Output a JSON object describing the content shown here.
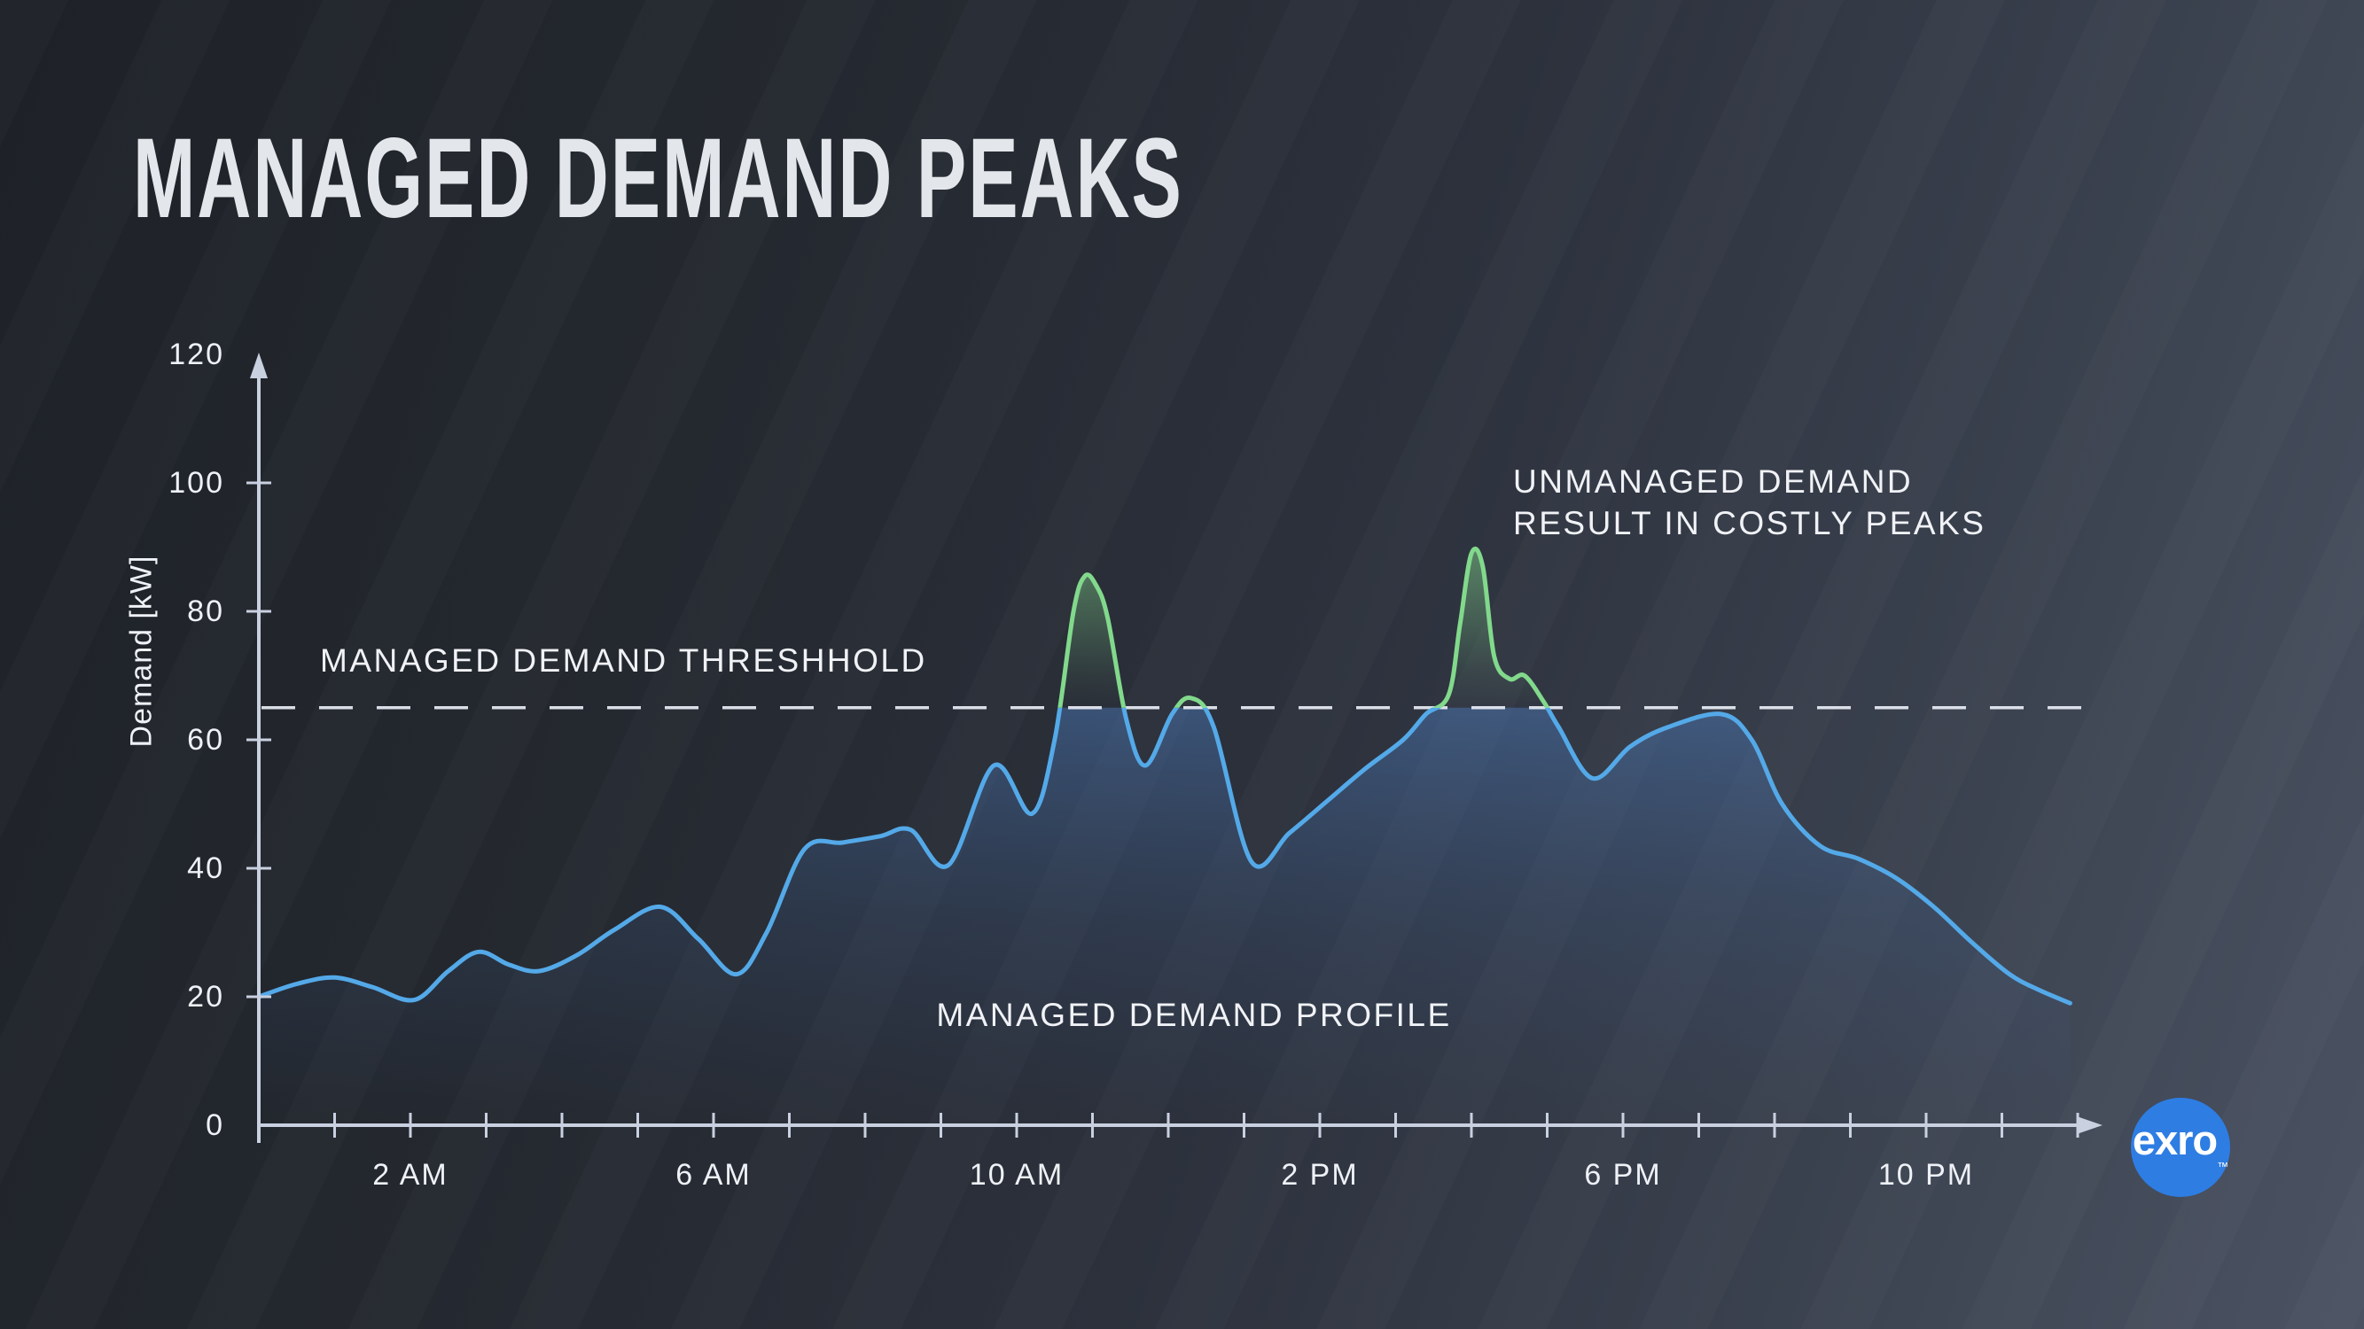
{
  "page": {
    "title": "MANAGED DEMAND PEAKS"
  },
  "labels": {
    "threshold": "MANAGED DEMAND THRESHHOLD",
    "unmanaged_line1": "UNMANAGED DEMAND",
    "unmanaged_line2": "RESULT IN COSTLY PEAKS",
    "profile": "MANAGED DEMAND PROFILE",
    "y_axis_title": "Demand [kW]",
    "logo_text": "exro",
    "logo_tm": "™"
  },
  "colors": {
    "managed_line_blue": "#54a9e8",
    "unmanaged_line_green": "#82d98c",
    "threshold_dash": "#e9edf6",
    "axis": "#c9d0e0",
    "text_light": "#eef1f6",
    "logo_circle_blue": "#2e7de3",
    "background_dark": "#1e2228",
    "background_light": "#4b5363"
  },
  "chart_data": {
    "type": "area",
    "title": "MANAGED DEMAND PEAKS",
    "ylabel": "Demand [kW]",
    "xlabel": "",
    "ylim": [
      0,
      120
    ],
    "xlim_hours": [
      0,
      24
    ],
    "grid": false,
    "legend_position": "none",
    "threshold_kw": 65,
    "y_ticks_labeled": [
      0,
      20,
      40,
      60,
      80,
      100,
      120
    ],
    "y_ticks_marked": [
      20,
      40,
      60,
      80,
      100
    ],
    "x_tick_hours_marked_every": 1,
    "x_ticks_labeled": [
      {
        "hour": 2,
        "label": "2 AM"
      },
      {
        "hour": 6,
        "label": "6 AM"
      },
      {
        "hour": 10,
        "label": "10 AM"
      },
      {
        "hour": 14,
        "label": "2 PM"
      },
      {
        "hour": 18,
        "label": "6 PM"
      },
      {
        "hour": 22,
        "label": "10 PM"
      }
    ],
    "series": [
      {
        "name": "demand_kw",
        "note": "single demand curve; drawn green above threshold (unmanaged peaks), blue below; blue area fill is clipped flat at the threshold",
        "points": [
          [
            0,
            20
          ],
          [
            0.5,
            22
          ],
          [
            1,
            23
          ],
          [
            1.5,
            21.5
          ],
          [
            2.05,
            19.5
          ],
          [
            2.5,
            24
          ],
          [
            2.9,
            27
          ],
          [
            3.3,
            25
          ],
          [
            3.7,
            24
          ],
          [
            4.2,
            26.5
          ],
          [
            4.7,
            30.5
          ],
          [
            5.3,
            34
          ],
          [
            5.8,
            29
          ],
          [
            6.3,
            23.5
          ],
          [
            6.7,
            30
          ],
          [
            7.2,
            43
          ],
          [
            7.7,
            44
          ],
          [
            8.2,
            45
          ],
          [
            8.6,
            46
          ],
          [
            9.1,
            40.5
          ],
          [
            9.7,
            56
          ],
          [
            10.2,
            48.5
          ],
          [
            10.5,
            60
          ],
          [
            10.75,
            80
          ],
          [
            10.9,
            85.5
          ],
          [
            11.05,
            84
          ],
          [
            11.2,
            79
          ],
          [
            11.45,
            63
          ],
          [
            11.7,
            56
          ],
          [
            12.05,
            64
          ],
          [
            12.3,
            66.5
          ],
          [
            12.6,
            62
          ],
          [
            13.1,
            41
          ],
          [
            13.6,
            45.5
          ],
          [
            14.1,
            50.5
          ],
          [
            14.6,
            55.5
          ],
          [
            15.1,
            60
          ],
          [
            15.4,
            64
          ],
          [
            15.7,
            67
          ],
          [
            15.85,
            78
          ],
          [
            16.0,
            89
          ],
          [
            16.15,
            87
          ],
          [
            16.3,
            73
          ],
          [
            16.5,
            69.5
          ],
          [
            16.7,
            70
          ],
          [
            16.95,
            66
          ],
          [
            17.15,
            62
          ],
          [
            17.6,
            54
          ],
          [
            18.1,
            59
          ],
          [
            18.6,
            62
          ],
          [
            19.3,
            64
          ],
          [
            19.7,
            60
          ],
          [
            20.1,
            50
          ],
          [
            20.6,
            43.5
          ],
          [
            21.1,
            41.5
          ],
          [
            21.6,
            38.5
          ],
          [
            22.1,
            34
          ],
          [
            22.6,
            28.5
          ],
          [
            23.1,
            23.5
          ],
          [
            23.5,
            21
          ],
          [
            23.9,
            19
          ]
        ]
      }
    ]
  }
}
